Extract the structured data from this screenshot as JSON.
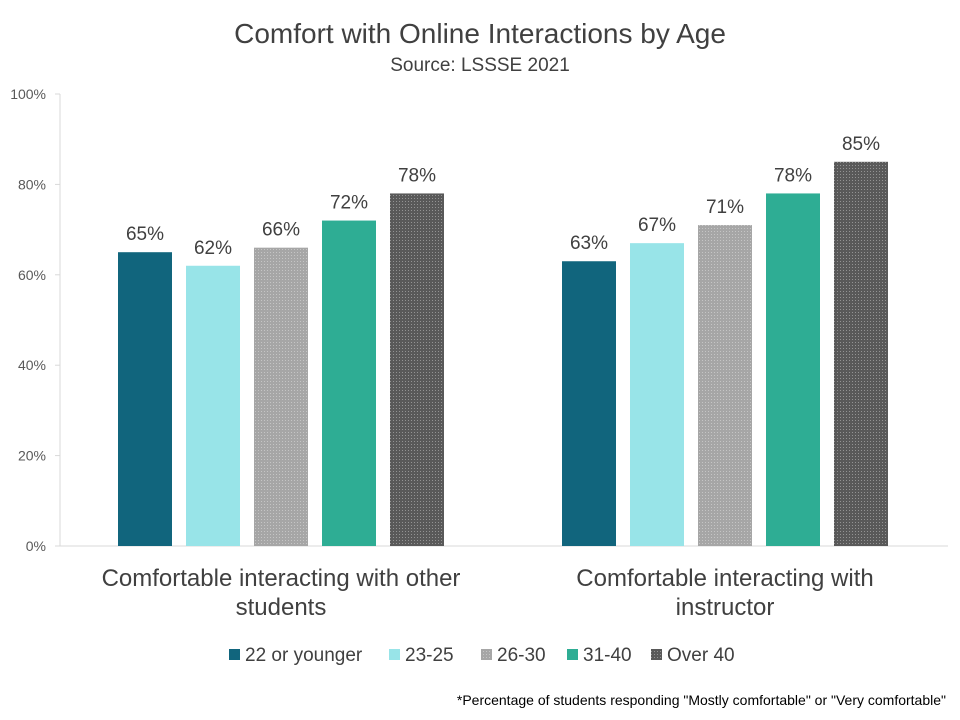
{
  "chart_data": {
    "type": "bar",
    "title": "Comfort with Online Interactions by Age",
    "subtitle": "Source: LSSSE 2021",
    "categories": [
      [
        "Comfortable interacting with other",
        "students"
      ],
      [
        "Comfortable interacting with",
        "instructor"
      ]
    ],
    "series": [
      {
        "name": "22 or younger",
        "values": [
          65,
          63
        ],
        "labels": [
          "65%",
          "63%"
        ],
        "color": "#11657D",
        "pattern": "solid"
      },
      {
        "name": "23-25",
        "values": [
          62,
          67
        ],
        "labels": [
          "62%",
          "67%"
        ],
        "color": "#98E4E8",
        "pattern": "solid"
      },
      {
        "name": "26-30",
        "values": [
          66,
          71
        ],
        "labels": [
          "66%",
          "71%"
        ],
        "color": "#A6A6A6",
        "pattern": "dots"
      },
      {
        "name": "31-40",
        "values": [
          72,
          78
        ],
        "labels": [
          "72%",
          "78%"
        ],
        "color": "#2EAD94",
        "pattern": "solid"
      },
      {
        "name": "Over 40",
        "values": [
          78,
          85
        ],
        "labels": [
          "78%",
          "85%"
        ],
        "color": "#595959",
        "pattern": "dots"
      }
    ],
    "y_ticks": [
      "0%",
      "20%",
      "40%",
      "60%",
      "80%",
      "100%"
    ],
    "ylim": [
      0,
      100
    ],
    "grid": false,
    "legend_position": "bottom",
    "footnote": "*Percentage of students responding \"Mostly comfortable\" or \"Very comfortable\""
  }
}
